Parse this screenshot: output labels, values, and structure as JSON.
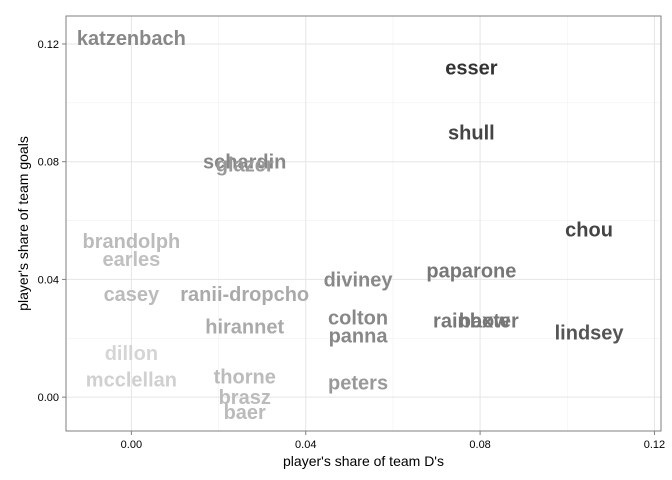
{
  "chart_data": {
    "type": "scatter",
    "title": "",
    "xlabel": "player's share of team D's",
    "ylabel": "player's share of team goals",
    "xlim": [
      -0.015,
      0.1215
    ],
    "ylim": [
      -0.0115,
      0.1295
    ],
    "xticks": [
      0.0,
      0.04,
      0.08,
      0.12
    ],
    "yticks": [
      0.0,
      0.04,
      0.08,
      0.12
    ],
    "xtick_labels": [
      "0.00",
      "0.04",
      "0.08",
      "0.12"
    ],
    "ytick_labels": [
      "0.00",
      "0.04",
      "0.08",
      "0.12"
    ],
    "grid": true,
    "legend": "none",
    "marker": "text-label",
    "label_color_scale": [
      "#dddddd",
      "#333333"
    ],
    "points": [
      {
        "label": "katzenbach",
        "x": 0.0,
        "y": 0.122,
        "color": "#888888"
      },
      {
        "label": "esser",
        "x": 0.078,
        "y": 0.112,
        "color": "#333333"
      },
      {
        "label": "shull",
        "x": 0.078,
        "y": 0.09,
        "color": "#444444"
      },
      {
        "label": "schardin",
        "x": 0.026,
        "y": 0.08,
        "color": "#888888"
      },
      {
        "label": "glazer",
        "x": 0.026,
        "y": 0.079,
        "color": "#999999"
      },
      {
        "label": "chou",
        "x": 0.105,
        "y": 0.057,
        "color": "#444444"
      },
      {
        "label": "brandolph",
        "x": 0.0,
        "y": 0.053,
        "color": "#bbbbbb"
      },
      {
        "label": "earles",
        "x": 0.0,
        "y": 0.047,
        "color": "#c0c0c0"
      },
      {
        "label": "paparone",
        "x": 0.078,
        "y": 0.043,
        "color": "#777777"
      },
      {
        "label": "diviney",
        "x": 0.052,
        "y": 0.04,
        "color": "#888888"
      },
      {
        "label": "casey",
        "x": 0.0,
        "y": 0.035,
        "color": "#bbbbbb"
      },
      {
        "label": "ranii-dropcho",
        "x": 0.026,
        "y": 0.035,
        "color": "#aaaaaa"
      },
      {
        "label": "colton",
        "x": 0.052,
        "y": 0.027,
        "color": "#888888"
      },
      {
        "label": "rainbow",
        "x": 0.078,
        "y": 0.026,
        "color": "#777777"
      },
      {
        "label": "baxter",
        "x": 0.082,
        "y": 0.026,
        "color": "#777777"
      },
      {
        "label": "lindsey",
        "x": 0.105,
        "y": 0.022,
        "color": "#555555"
      },
      {
        "label": "hirannet",
        "x": 0.026,
        "y": 0.024,
        "color": "#aaaaaa"
      },
      {
        "label": "panna",
        "x": 0.052,
        "y": 0.021,
        "color": "#888888"
      },
      {
        "label": "dillon",
        "x": 0.0,
        "y": 0.015,
        "color": "#d5d5d5"
      },
      {
        "label": "thorne",
        "x": 0.026,
        "y": 0.007,
        "color": "#bbbbbb"
      },
      {
        "label": "mcclellan",
        "x": 0.0,
        "y": 0.006,
        "color": "#d0d0d0"
      },
      {
        "label": "peters",
        "x": 0.052,
        "y": 0.005,
        "color": "#999999"
      },
      {
        "label": "brasz",
        "x": 0.026,
        "y": 0.0,
        "color": "#bbbbbb"
      },
      {
        "label": "baer",
        "x": 0.026,
        "y": -0.005,
        "color": "#bbbbbb"
      }
    ]
  }
}
